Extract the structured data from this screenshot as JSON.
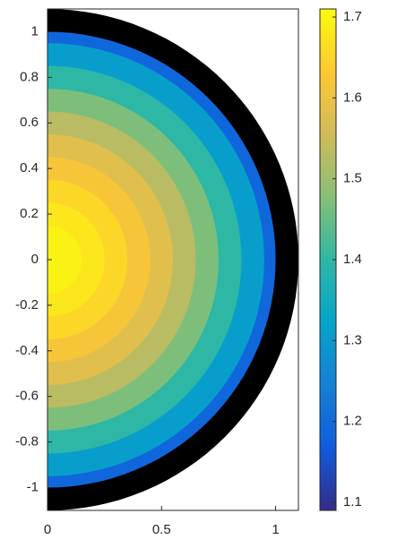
{
  "chart_data": {
    "type": "radial-heatmap",
    "r": [
      0,
      0.1,
      0.2,
      0.3,
      0.4,
      0.5,
      0.6,
      0.7,
      0.8,
      0.9,
      1.0
    ],
    "values": [
      1.7,
      1.695,
      1.68,
      1.655,
      1.62,
      1.58,
      1.53,
      1.47,
      1.4,
      1.31,
      1.19
    ],
    "xlim": [
      0,
      1.1
    ],
    "xticks": [
      0,
      0.5,
      1
    ],
    "ylim": [
      -1.1,
      1.1
    ],
    "yticks": [
      -1,
      -0.8,
      -0.6,
      -0.4,
      -0.2,
      0,
      0.2,
      0.4,
      0.6,
      0.8,
      1
    ],
    "clim": [
      1.09,
      1.71
    ],
    "cticks": [
      1.1,
      1.2,
      1.3,
      1.4,
      1.5,
      1.6,
      1.7
    ],
    "colormap": [
      "#352a87",
      "#0f5cdd",
      "#1481d6",
      "#06a4ca",
      "#2eb7a4",
      "#87bf77",
      "#d1bb59",
      "#fec832",
      "#f9fb0e"
    ],
    "mesh_color": "#000000"
  }
}
